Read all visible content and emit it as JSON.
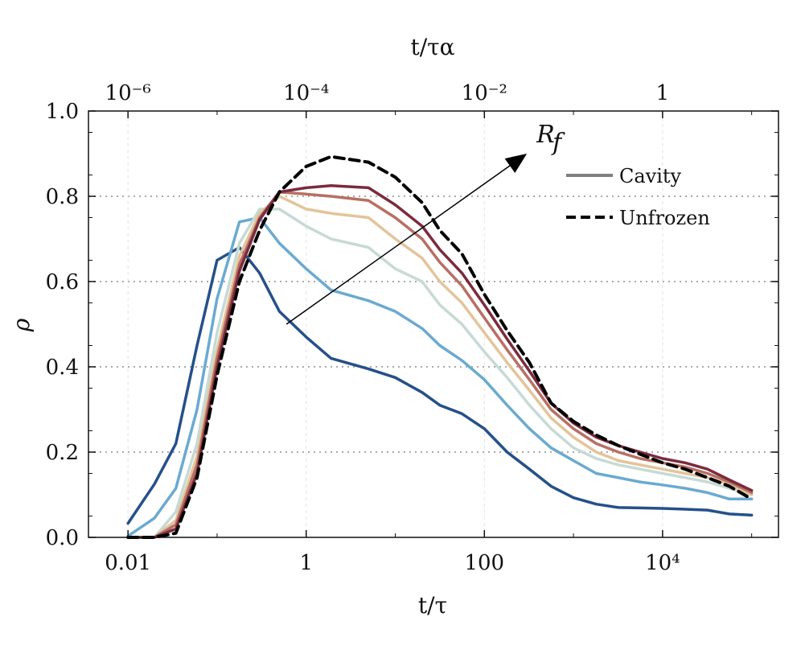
{
  "chart_data": {
    "type": "line",
    "xlabel": "t/τ",
    "xlabel_top": "t/τα",
    "ylabel": "ρ",
    "xscale": "log",
    "xlim": [
      0.0036,
      200000
    ],
    "ylim": [
      0,
      1.0
    ],
    "x_top_factor": 0.0001,
    "x_ticks": [
      {
        "value": 0.01,
        "label": "0.01"
      },
      {
        "value": 1,
        "label": "1"
      },
      {
        "value": 100,
        "label": "100"
      },
      {
        "value": 10000,
        "label": "10⁴"
      }
    ],
    "x_top_ticks": [
      {
        "value": 1e-06,
        "label": "10⁻⁶"
      },
      {
        "value": 0.0001,
        "label": "10⁻⁴"
      },
      {
        "value": 0.01,
        "label": "10⁻²"
      },
      {
        "value": 1,
        "label": "1"
      }
    ],
    "y_ticks": [
      {
        "value": 0.0,
        "label": "0.0"
      },
      {
        "value": 0.2,
        "label": "0.2"
      },
      {
        "value": 0.4,
        "label": "0.4"
      },
      {
        "value": 0.6,
        "label": "0.6"
      },
      {
        "value": 0.8,
        "label": "0.8"
      },
      {
        "value": 1.0,
        "label": "1.0"
      }
    ],
    "grid": "dotted horizontal at 0.2 steps, faint vertical at decades",
    "legend_position": "top-right",
    "legend": [
      {
        "label": "Cavity",
        "style": "solid",
        "color": "#808080"
      },
      {
        "label": "Unfrozen",
        "style": "dashed",
        "color": "#000000"
      }
    ],
    "annotations": [
      {
        "text": "R",
        "subscript": "f",
        "arrow_from": [
          0.6,
          0.5
        ],
        "arrow_to": [
          300,
          0.9
        ]
      }
    ],
    "x": [
      0.01,
      0.0198,
      0.0345,
      0.0595,
      0.1,
      0.178,
      0.3,
      0.5,
      1,
      1.9,
      5,
      10,
      20,
      31.6,
      56,
      100,
      180,
      320,
      560,
      1000,
      1800,
      3200,
      5600,
      10000,
      18000,
      32000,
      56000,
      100000
    ],
    "series": [
      {
        "color": "#25508a",
        "values": [
          0.033,
          0.125,
          0.22,
          0.45,
          0.65,
          0.68,
          0.62,
          0.53,
          0.47,
          0.42,
          0.395,
          0.375,
          0.34,
          0.31,
          0.29,
          0.255,
          0.2,
          0.16,
          0.12,
          0.093,
          0.078,
          0.07,
          0.069,
          0.068,
          0.066,
          0.064,
          0.055,
          0.052
        ]
      },
      {
        "color": "#6aaad1",
        "values": [
          0.003,
          0.045,
          0.115,
          0.3,
          0.56,
          0.74,
          0.75,
          0.69,
          0.63,
          0.58,
          0.555,
          0.53,
          0.49,
          0.45,
          0.415,
          0.37,
          0.31,
          0.255,
          0.21,
          0.18,
          0.15,
          0.14,
          0.13,
          0.123,
          0.115,
          0.105,
          0.09,
          0.09
        ]
      },
      {
        "color": "#c6dad6",
        "values": [
          0.0,
          0.0,
          0.06,
          0.22,
          0.48,
          0.69,
          0.77,
          0.77,
          0.73,
          0.7,
          0.68,
          0.63,
          0.6,
          0.545,
          0.5,
          0.435,
          0.375,
          0.31,
          0.255,
          0.21,
          0.185,
          0.17,
          0.16,
          0.15,
          0.14,
          0.13,
          0.115,
          0.1
        ]
      },
      {
        "color": "#e3c49a",
        "values": [
          0.0,
          0.0,
          0.04,
          0.19,
          0.44,
          0.66,
          0.76,
          0.8,
          0.77,
          0.76,
          0.75,
          0.7,
          0.655,
          0.6,
          0.55,
          0.48,
          0.41,
          0.345,
          0.28,
          0.235,
          0.2,
          0.18,
          0.17,
          0.16,
          0.15,
          0.14,
          0.125,
          0.1
        ]
      },
      {
        "color": "#b86f63",
        "values": [
          0.0,
          0.0,
          0.03,
          0.17,
          0.42,
          0.64,
          0.75,
          0.81,
          0.805,
          0.8,
          0.79,
          0.75,
          0.7,
          0.645,
          0.59,
          0.515,
          0.44,
          0.37,
          0.3,
          0.255,
          0.22,
          0.2,
          0.185,
          0.175,
          0.165,
          0.15,
          0.13,
          0.105
        ]
      },
      {
        "color": "#7b2b3d",
        "values": [
          0.0,
          0.0,
          0.02,
          0.15,
          0.4,
          0.625,
          0.745,
          0.81,
          0.82,
          0.825,
          0.82,
          0.78,
          0.73,
          0.675,
          0.62,
          0.545,
          0.465,
          0.39,
          0.315,
          0.268,
          0.235,
          0.215,
          0.2,
          0.185,
          0.175,
          0.16,
          0.135,
          0.11
        ]
      },
      {
        "color": "#000000",
        "dashed": true,
        "name": "Unfrozen",
        "values": [
          0.0,
          0.0,
          0.01,
          0.14,
          0.38,
          0.6,
          0.72,
          0.81,
          0.87,
          0.893,
          0.88,
          0.845,
          0.785,
          0.72,
          0.665,
          0.57,
          0.485,
          0.41,
          0.315,
          0.272,
          0.24,
          0.215,
          0.195,
          0.175,
          0.16,
          0.14,
          0.12,
          0.09
        ]
      }
    ]
  }
}
